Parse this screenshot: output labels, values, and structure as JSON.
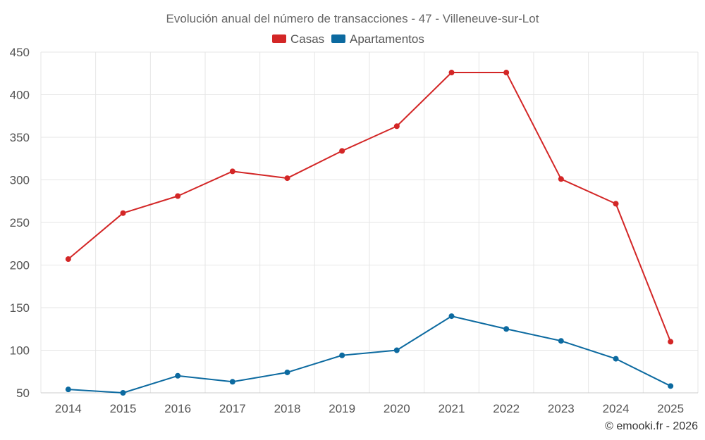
{
  "chart_data": {
    "type": "line",
    "title": "Evolución anual del número de transacciones - 47 - Villeneuve-sur-Lot",
    "categories": [
      "2014",
      "2015",
      "2016",
      "2017",
      "2018",
      "2019",
      "2020",
      "2021",
      "2022",
      "2023",
      "2024",
      "2025"
    ],
    "series": [
      {
        "name": "Casas",
        "color": "#d32626",
        "values": [
          207,
          261,
          281,
          310,
          302,
          334,
          363,
          426,
          426,
          301,
          272,
          110
        ]
      },
      {
        "name": "Apartamentos",
        "color": "#0c6aa0",
        "values": [
          54,
          50,
          70,
          63,
          74,
          94,
          100,
          140,
          125,
          111,
          90,
          58
        ]
      }
    ],
    "ylim": [
      50,
      450
    ],
    "yticks": [
      50,
      100,
      150,
      200,
      250,
      300,
      350,
      400,
      450
    ],
    "xlabel": "",
    "ylabel": "",
    "legend": "top-center",
    "grid": true
  },
  "credit": "© emooki.fr - 2026"
}
